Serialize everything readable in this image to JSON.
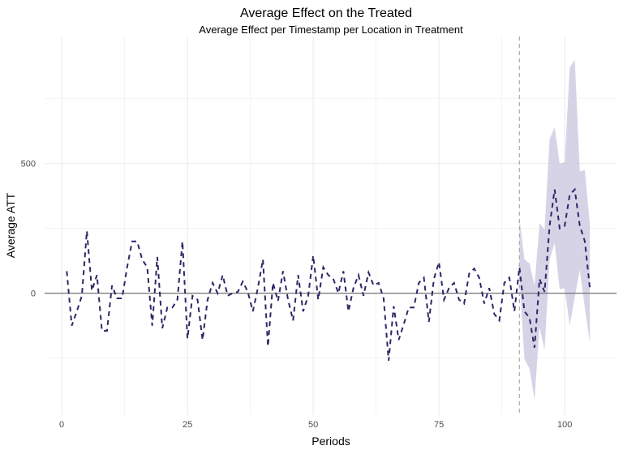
{
  "chart_data": {
    "type": "line",
    "title": "Average Effect on the Treated",
    "subtitle": "Average Effect per Timestamp per Location in Treatment",
    "xlabel": "Periods",
    "ylabel": "Average ATT",
    "xlim": [
      -3.4,
      110.3
    ],
    "ylim": [
      -470,
      990
    ],
    "x_ticks": [
      0,
      25,
      50,
      75,
      100
    ],
    "y_ticks": [
      0,
      500
    ],
    "grid": true,
    "treatment_start": 91,
    "colors": {
      "line": "#2d2766",
      "band": "#cfcbe3",
      "zero_line": "#666666",
      "vline": "#aaaaaa",
      "grid": "#ebebeb"
    },
    "series": [
      {
        "x": [
          1,
          2,
          3,
          4,
          5,
          6,
          7,
          8,
          9,
          10,
          11,
          12,
          13,
          14,
          15,
          16,
          17,
          18,
          19,
          20,
          21,
          22,
          23,
          24,
          25,
          26,
          27,
          28,
          29,
          30,
          31,
          32,
          33,
          34,
          35,
          36,
          37,
          38,
          39,
          40,
          41,
          42,
          43,
          44,
          45,
          46,
          47,
          48,
          49,
          50,
          51,
          52,
          53,
          54,
          55,
          56,
          57,
          58,
          59,
          60,
          61,
          62,
          63,
          64,
          65,
          66,
          67,
          68,
          69,
          70,
          71,
          72,
          73,
          74,
          75,
          76,
          77,
          78,
          79,
          80,
          81,
          82,
          83,
          84,
          85,
          86,
          87,
          88,
          89,
          90,
          91,
          92,
          93,
          94,
          95,
          96,
          97,
          98,
          99,
          100,
          101,
          102,
          103,
          104,
          105
        ],
        "y": [
          85,
          -125,
          -70,
          -10,
          240,
          10,
          70,
          -145,
          -145,
          30,
          -20,
          -20,
          100,
          200,
          200,
          130,
          100,
          -125,
          140,
          -135,
          -55,
          -55,
          -25,
          200,
          -175,
          -10,
          -25,
          -180,
          -25,
          40,
          0,
          70,
          -10,
          0,
          5,
          45,
          5,
          -70,
          20,
          130,
          -205,
          40,
          -30,
          85,
          -25,
          -105,
          70,
          -70,
          -10,
          145,
          -25,
          100,
          70,
          55,
          0,
          85,
          -70,
          20,
          70,
          -10,
          80,
          30,
          40,
          -20,
          -260,
          -50,
          -180,
          -120,
          -55,
          -55,
          40,
          60,
          -110,
          55,
          120,
          -25,
          20,
          40,
          -25,
          -40,
          75,
          95,
          60,
          -40,
          20,
          -80,
          -105,
          40,
          60,
          -70,
          100,
          -70,
          -95,
          -210,
          55,
          5,
          260,
          400,
          250,
          260,
          380,
          400,
          260,
          200,
          20
        ]
      }
    ],
    "confidence_band": {
      "x": [
        91,
        92,
        93,
        94,
        95,
        96,
        97,
        98,
        99,
        100,
        101,
        102,
        103,
        104,
        105
      ],
      "upper": [
        290,
        130,
        115,
        30,
        270,
        245,
        595,
        640,
        500,
        505,
        870,
        900,
        470,
        475,
        265
      ],
      "lower": [
        60,
        -255,
        -290,
        -410,
        -130,
        -220,
        130,
        195,
        15,
        20,
        -125,
        -15,
        90,
        -55,
        -190
      ]
    }
  }
}
